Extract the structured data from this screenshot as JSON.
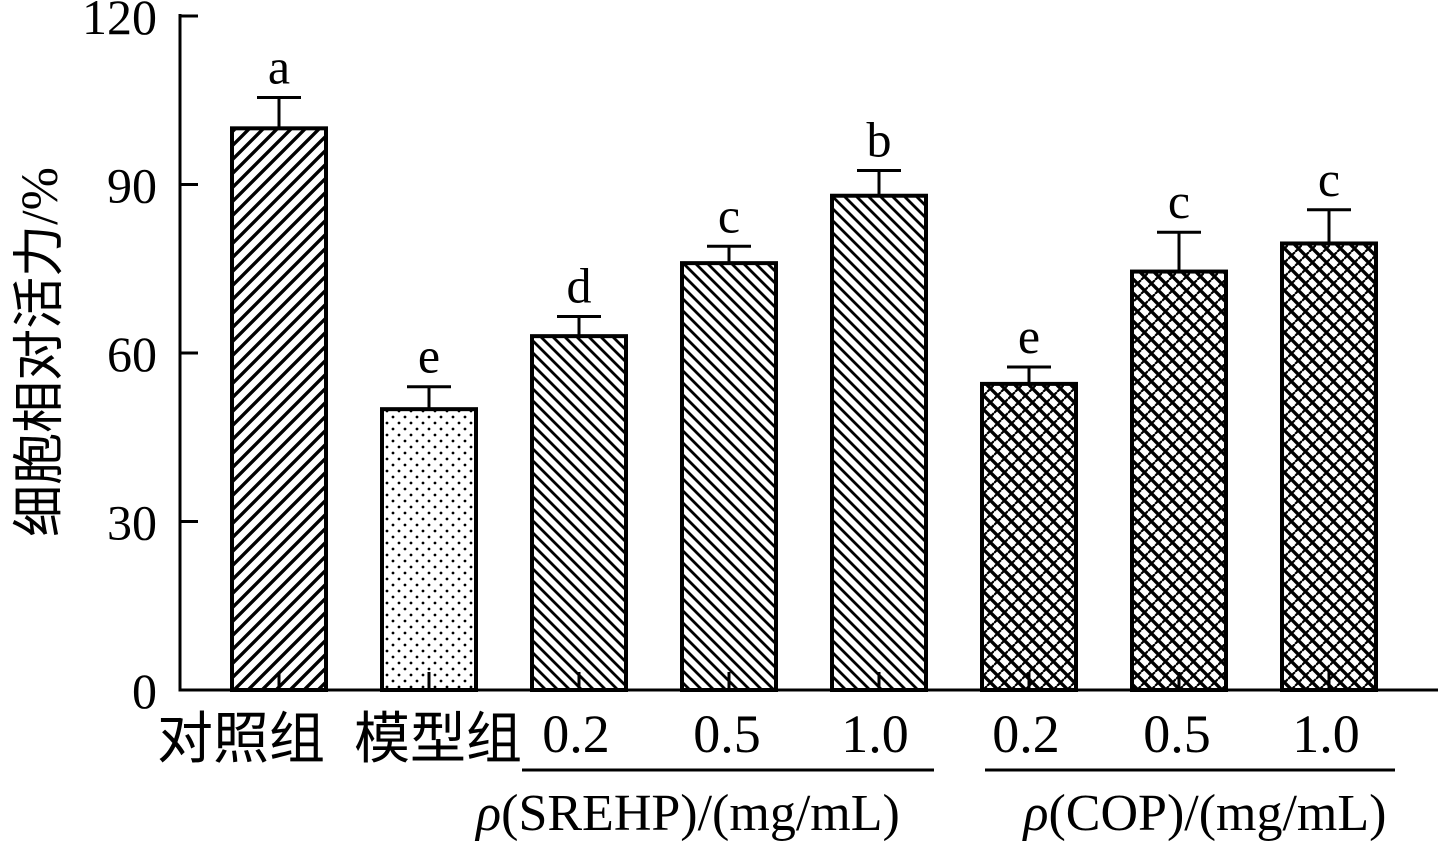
{
  "chart_data": {
    "type": "bar",
    "ylabel": "细胞相对活力/%",
    "ylim": [
      0,
      120
    ],
    "yticks": [
      0,
      30,
      60,
      90,
      120
    ],
    "grid": false,
    "categories": [
      "对照组",
      "模型组",
      "0.2",
      "0.5",
      "1.0",
      "0.2",
      "0.5",
      "1.0"
    ],
    "values": [
      100,
      50,
      63,
      76,
      88,
      54.5,
      74.5,
      79.5
    ],
    "error": [
      5.5,
      4,
      3.5,
      3,
      4.5,
      3,
      7,
      6
    ],
    "significance_letters": [
      "a",
      "e",
      "d",
      "c",
      "b",
      "e",
      "c",
      "c"
    ],
    "groups": [
      {
        "symbol": "ρ",
        "text": "(SREHP)/(mg/mL)",
        "members": [
          2,
          3,
          4
        ]
      },
      {
        "symbol": "ρ",
        "text": "(COP)/(mg/mL)",
        "members": [
          5,
          6,
          7
        ]
      }
    ]
  }
}
